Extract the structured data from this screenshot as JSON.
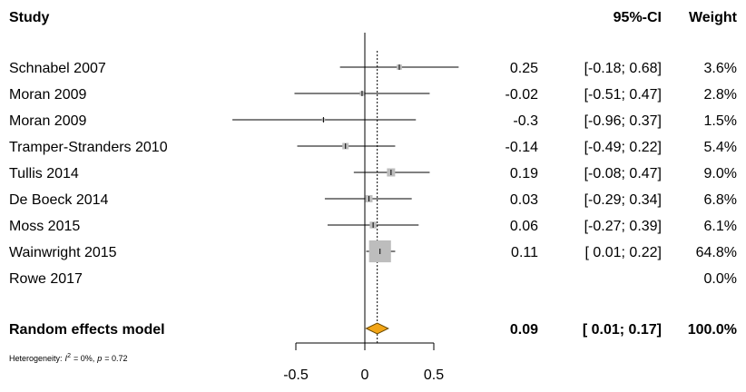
{
  "chart_data": {
    "type": "forest",
    "headers": {
      "study": "Study",
      "ci": "95%-CI",
      "weight": "Weight"
    },
    "studies": [
      {
        "name": "Schnabel 2007",
        "estimate": 0.25,
        "lower": -0.18,
        "upper": 0.68,
        "ci_label": "[-0.18; 0.68]",
        "weight": 3.6,
        "weight_label": "3.6%"
      },
      {
        "name": "Moran 2009",
        "estimate": -0.02,
        "lower": -0.51,
        "upper": 0.47,
        "ci_label": "[-0.51; 0.47]",
        "weight": 2.8,
        "weight_label": "2.8%"
      },
      {
        "name": "Moran 2009",
        "estimate": -0.3,
        "lower": -0.96,
        "upper": 0.37,
        "ci_label": "[-0.96; 0.37]",
        "weight": 1.5,
        "weight_label": "1.5%"
      },
      {
        "name": "Tramper-Stranders 2010",
        "estimate": -0.14,
        "lower": -0.49,
        "upper": 0.22,
        "ci_label": "[-0.49; 0.22]",
        "weight": 5.4,
        "weight_label": "5.4%"
      },
      {
        "name": "Tullis 2014",
        "estimate": 0.19,
        "lower": -0.08,
        "upper": 0.47,
        "ci_label": "[-0.08; 0.47]",
        "weight": 9.0,
        "weight_label": "9.0%"
      },
      {
        "name": "De Boeck 2014",
        "estimate": 0.03,
        "lower": -0.29,
        "upper": 0.34,
        "ci_label": "[-0.29; 0.34]",
        "weight": 6.8,
        "weight_label": "6.8%"
      },
      {
        "name": "Moss 2015",
        "estimate": 0.06,
        "lower": -0.27,
        "upper": 0.39,
        "ci_label": "[-0.27; 0.39]",
        "weight": 6.1,
        "weight_label": "6.1%"
      },
      {
        "name": "Wainwright 2015",
        "estimate": 0.11,
        "lower": 0.01,
        "upper": 0.22,
        "ci_label": "[ 0.01; 0.22]",
        "weight": 64.8,
        "weight_label": "64.8%"
      },
      {
        "name": "Rowe 2017",
        "estimate": null,
        "lower": null,
        "upper": null,
        "ci_label": null,
        "weight": 0.0,
        "weight_label": "0.0%"
      }
    ],
    "pooled": {
      "name": "Random effects model",
      "estimate": 0.09,
      "lower": 0.01,
      "upper": 0.17,
      "ci_label": "[ 0.01; 0.17]",
      "weight": 100.0,
      "weight_label": "100.0%",
      "color": "#f2a516"
    },
    "heterogeneity": {
      "label": "Heterogeneity:",
      "i2_symbol": "I",
      "i2_sup": "2",
      "i2_text": "= 0%,",
      "p_symbol": "p",
      "p_text": "= 0.72"
    },
    "square_color": "#bdbdbd",
    "xlim": [
      -0.5,
      0.5
    ],
    "xticks": [
      -0.5,
      0,
      0.5
    ]
  }
}
